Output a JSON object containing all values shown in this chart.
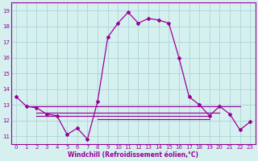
{
  "xlabel": "Windchill (Refroidissement éolien,°C)",
  "background_color": "#d6f0f0",
  "grid_color": "#b0d8d8",
  "line_color": "#990099",
  "xlim": [
    -0.5,
    23.5
  ],
  "ylim": [
    10.5,
    19.5
  ],
  "xticks": [
    0,
    1,
    2,
    3,
    4,
    5,
    6,
    7,
    8,
    9,
    10,
    11,
    12,
    13,
    14,
    15,
    16,
    17,
    18,
    19,
    20,
    21,
    22,
    23
  ],
  "yticks": [
    11,
    12,
    13,
    14,
    15,
    16,
    17,
    18,
    19
  ],
  "main_series": [
    13.5,
    12.9,
    12.8,
    12.4,
    12.3,
    11.1,
    11.5,
    10.8,
    13.2,
    17.3,
    18.2,
    18.9,
    18.2,
    18.5,
    18.4,
    18.2,
    16.0,
    13.5,
    13.0,
    12.3,
    12.9,
    12.4,
    11.4,
    11.9
  ],
  "flat_lines": [
    {
      "x_start": 1,
      "x_end": 22,
      "y": 12.9
    },
    {
      "x_start": 2,
      "x_end": 20,
      "y": 12.5
    },
    {
      "x_start": 2,
      "x_end": 19,
      "y": 12.3
    },
    {
      "x_start": 8,
      "x_end": 19,
      "y": 12.1
    }
  ]
}
